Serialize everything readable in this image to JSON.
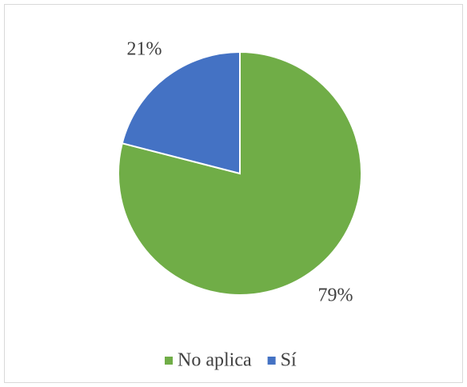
{
  "chart_data": {
    "type": "pie",
    "categories": [
      "No aplica",
      "Sí"
    ],
    "values": [
      79,
      21
    ],
    "value_labels": [
      "79%",
      "21%"
    ],
    "colors": [
      "#70ad47",
      "#4472c4"
    ],
    "legend": "bottom"
  }
}
